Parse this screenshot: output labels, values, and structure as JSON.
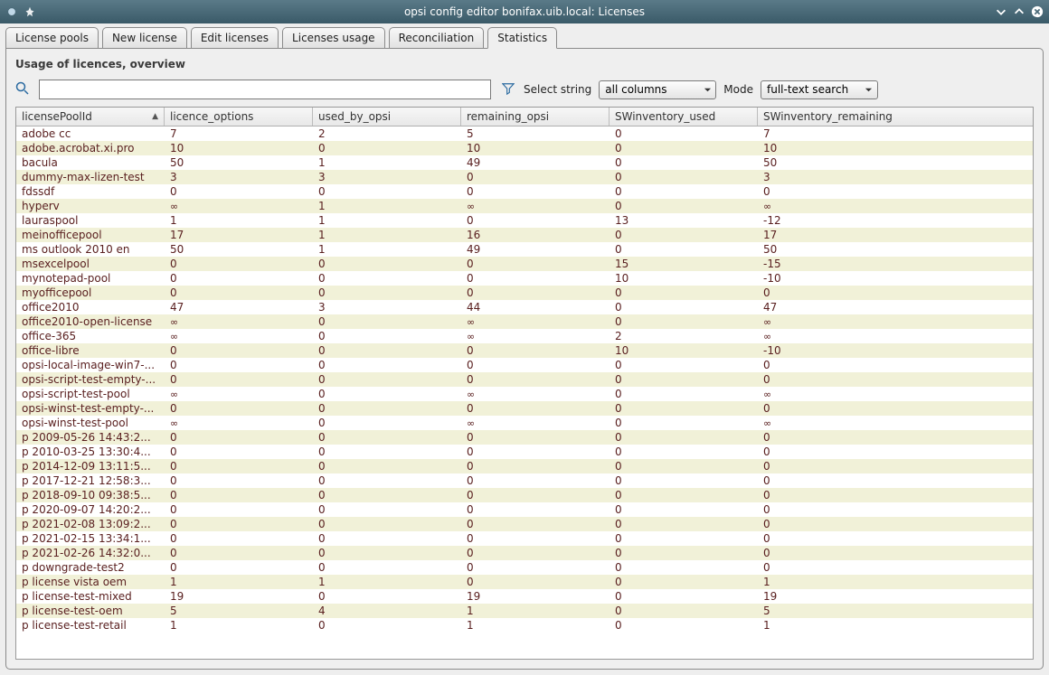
{
  "window": {
    "title": "opsi config editor bonifax.uib.local: Licenses"
  },
  "tabs": [
    {
      "label": "License pools"
    },
    {
      "label": "New license"
    },
    {
      "label": "Edit licenses"
    },
    {
      "label": "Licenses usage"
    },
    {
      "label": "Reconciliation"
    },
    {
      "label": "Statistics",
      "active": true
    }
  ],
  "section_title": "Usage of licences, overview",
  "search": {
    "value": ""
  },
  "select_string": {
    "label": "Select string",
    "value": "all columns"
  },
  "mode": {
    "label": "Mode",
    "value": "full-text search"
  },
  "columns": [
    "licensePoolId",
    "licence_options",
    "used_by_opsi",
    "remaining_opsi",
    "SWinventory_used",
    "SWinventory_remaining"
  ],
  "sort": {
    "column": 0,
    "dir": "asc"
  },
  "rows": [
    [
      "adobe cc",
      "7",
      "2",
      "5",
      "0",
      "7"
    ],
    [
      "adobe.acrobat.xi.pro",
      "10",
      "0",
      "10",
      "0",
      "10"
    ],
    [
      "bacula",
      "50",
      "1",
      "49",
      "0",
      "50"
    ],
    [
      "dummy-max-lizen-test",
      "3",
      "3",
      "0",
      "0",
      "3"
    ],
    [
      "fdssdf",
      "0",
      "0",
      "0",
      "0",
      "0"
    ],
    [
      "hyperv",
      "∞",
      "1",
      "∞",
      "0",
      "∞"
    ],
    [
      "lauraspool",
      "1",
      "1",
      "0",
      "13",
      "-12"
    ],
    [
      "meinofficepool",
      "17",
      "1",
      "16",
      "0",
      "17"
    ],
    [
      "ms outlook 2010 en",
      "50",
      "1",
      "49",
      "0",
      "50"
    ],
    [
      "msexcelpool",
      "0",
      "0",
      "0",
      "15",
      "-15"
    ],
    [
      "mynotepad-pool",
      "0",
      "0",
      "0",
      "10",
      "-10"
    ],
    [
      "myofficepool",
      "0",
      "0",
      "0",
      "0",
      "0"
    ],
    [
      "office2010",
      "47",
      "3",
      "44",
      "0",
      "47"
    ],
    [
      "office2010-open-license",
      "∞",
      "0",
      "∞",
      "0",
      "∞"
    ],
    [
      "office-365",
      "∞",
      "0",
      "∞",
      "2",
      "∞"
    ],
    [
      "office-libre",
      "0",
      "0",
      "0",
      "10",
      "-10"
    ],
    [
      "opsi-local-image-win7-...",
      "0",
      "0",
      "0",
      "0",
      "0"
    ],
    [
      "opsi-script-test-empty-...",
      "0",
      "0",
      "0",
      "0",
      "0"
    ],
    [
      "opsi-script-test-pool",
      "∞",
      "0",
      "∞",
      "0",
      "∞"
    ],
    [
      "opsi-winst-test-empty-...",
      "0",
      "0",
      "0",
      "0",
      "0"
    ],
    [
      "opsi-winst-test-pool",
      "∞",
      "0",
      "∞",
      "0",
      "∞"
    ],
    [
      "p 2009-05-26 14:43:2...",
      "0",
      "0",
      "0",
      "0",
      "0"
    ],
    [
      "p 2010-03-25 13:30:4...",
      "0",
      "0",
      "0",
      "0",
      "0"
    ],
    [
      "p 2014-12-09 13:11:5...",
      "0",
      "0",
      "0",
      "0",
      "0"
    ],
    [
      "p 2017-12-21 12:58:3...",
      "0",
      "0",
      "0",
      "0",
      "0"
    ],
    [
      "p 2018-09-10 09:38:5...",
      "0",
      "0",
      "0",
      "0",
      "0"
    ],
    [
      "p 2020-09-07 14:20:2...",
      "0",
      "0",
      "0",
      "0",
      "0"
    ],
    [
      "p 2021-02-08 13:09:2...",
      "0",
      "0",
      "0",
      "0",
      "0"
    ],
    [
      "p 2021-02-15 13:34:1...",
      "0",
      "0",
      "0",
      "0",
      "0"
    ],
    [
      "p 2021-02-26 14:32:0...",
      "0",
      "0",
      "0",
      "0",
      "0"
    ],
    [
      "p downgrade-test2",
      "0",
      "0",
      "0",
      "0",
      "0"
    ],
    [
      "p license vista oem",
      "1",
      "1",
      "0",
      "0",
      "1"
    ],
    [
      "p license-test-mixed",
      "19",
      "0",
      "19",
      "0",
      "19"
    ],
    [
      "p license-test-oem",
      "5",
      "4",
      "1",
      "0",
      "5"
    ],
    [
      "p license-test-retail",
      "1",
      "0",
      "1",
      "0",
      "1"
    ]
  ],
  "colors": {
    "row_even_bg": "#f1f1d8",
    "row_odd_bg": "#ffffff",
    "cell_text": "#5a2020",
    "header_bg_top": "#f7f7f7",
    "header_bg_bot": "#e8e8e8",
    "titlebar_top": "#5a7a88",
    "titlebar_bot": "#3a5a68"
  }
}
